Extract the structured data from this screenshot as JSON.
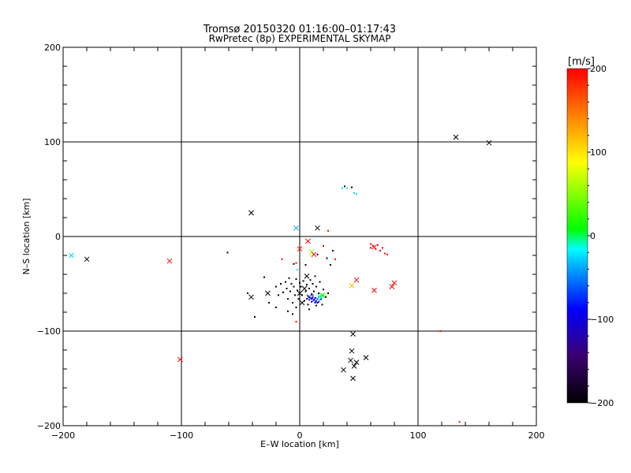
{
  "chart_data": {
    "type": "scatter",
    "title": "Tromsø 20150320 01:16:00–01:17:43",
    "subtitle": "RwPretec (8p) EXPERIMENTAL SKYMAP",
    "xlabel": "E–W location [km]",
    "ylabel": "N–S location [km]",
    "xlim": [
      -200,
      200
    ],
    "ylim": [
      -200,
      200
    ],
    "xticks": [
      -200,
      -100,
      0,
      100,
      200
    ],
    "yticks": [
      -200,
      -100,
      0,
      100,
      200
    ],
    "xtick_labels": [
      "−200",
      "−100",
      "0",
      "100",
      "200"
    ],
    "ytick_labels": [
      "−200",
      "−100",
      "0",
      "100",
      "200"
    ],
    "grid": true,
    "colorbar": {
      "label": "[m/s]",
      "range": [
        -200,
        200
      ],
      "ticks": [
        200,
        100,
        0,
        -100,
        -200
      ],
      "tick_labels": [
        "200",
        "100",
        "0",
        "−100",
        "−200"
      ],
      "placement": "right",
      "colors": [
        "#000000",
        "#3a0070",
        "#0000ff",
        "#00ffff",
        "#00ff00",
        "#ffff00",
        "#ff8000",
        "#ff0000"
      ]
    },
    "crosses": [
      {
        "x": 132,
        "y": 105,
        "v": -200
      },
      {
        "x": 160,
        "y": 99,
        "v": -200
      },
      {
        "x": -41,
        "y": 25,
        "v": -200
      },
      {
        "x": -3,
        "y": 9,
        "v": -60
      },
      {
        "x": 15,
        "y": 9,
        "v": -200
      },
      {
        "x": -193,
        "y": -20,
        "v": -40
      },
      {
        "x": -180,
        "y": -24,
        "v": -200
      },
      {
        "x": -110,
        "y": -26,
        "v": 200
      },
      {
        "x": 7,
        "y": -5,
        "v": 200
      },
      {
        "x": 0,
        "y": -13,
        "v": 190
      },
      {
        "x": 10,
        "y": -16,
        "v": 60
      },
      {
        "x": 12,
        "y": -19,
        "v": 200
      },
      {
        "x": 63,
        "y": -11,
        "v": 200
      },
      {
        "x": 48,
        "y": -46,
        "v": 200
      },
      {
        "x": 44,
        "y": -52,
        "v": 120
      },
      {
        "x": 80,
        "y": -49,
        "v": 200
      },
      {
        "x": 78,
        "y": -53,
        "v": 200
      },
      {
        "x": 63,
        "y": -57,
        "v": 200
      },
      {
        "x": -41,
        "y": -64,
        "v": -200
      },
      {
        "x": -27,
        "y": -60,
        "v": -200
      },
      {
        "x": 6,
        "y": -42,
        "v": -200
      },
      {
        "x": 4,
        "y": -55,
        "v": -200
      },
      {
        "x": 0,
        "y": -60,
        "v": -200
      },
      {
        "x": 8,
        "y": -64,
        "v": -130
      },
      {
        "x": 12,
        "y": -67,
        "v": -110
      },
      {
        "x": 17,
        "y": -63,
        "v": -20
      },
      {
        "x": 19,
        "y": -62,
        "v": 20
      },
      {
        "x": 2,
        "y": -70,
        "v": -200
      },
      {
        "x": 45,
        "y": -103,
        "v": -200
      },
      {
        "x": 44,
        "y": -121,
        "v": -200
      },
      {
        "x": 43,
        "y": -131,
        "v": -200
      },
      {
        "x": 56,
        "y": -128,
        "v": -200
      },
      {
        "x": 48,
        "y": -133,
        "v": -200
      },
      {
        "x": 46,
        "y": -137,
        "v": -200
      },
      {
        "x": 37,
        "y": -141,
        "v": -200
      },
      {
        "x": 45,
        "y": -150,
        "v": -200
      },
      {
        "x": -101,
        "y": -130,
        "v": 200
      }
    ],
    "dots": [
      {
        "x": 36,
        "y": 51,
        "v": -30
      },
      {
        "x": 38,
        "y": 53,
        "v": -200
      },
      {
        "x": 40,
        "y": 51,
        "v": -40
      },
      {
        "x": 44,
        "y": 52,
        "v": -200
      },
      {
        "x": 46,
        "y": 46,
        "v": -40
      },
      {
        "x": 48,
        "y": 45,
        "v": -30
      },
      {
        "x": 24,
        "y": 6,
        "v": 200
      },
      {
        "x": -61,
        "y": -17,
        "v": -200
      },
      {
        "x": -15,
        "y": -24,
        "v": 200
      },
      {
        "x": -3,
        "y": -28,
        "v": 200
      },
      {
        "x": -2,
        "y": -35,
        "v": -30
      },
      {
        "x": -5,
        "y": -29,
        "v": -200
      },
      {
        "x": 5,
        "y": -30,
        "v": -200
      },
      {
        "x": 9,
        "y": -20,
        "v": 80
      },
      {
        "x": 15,
        "y": -19,
        "v": -200
      },
      {
        "x": 20,
        "y": -10,
        "v": 200
      },
      {
        "x": 23,
        "y": -23,
        "v": -200
      },
      {
        "x": 26,
        "y": -30,
        "v": -200
      },
      {
        "x": 28,
        "y": -15,
        "v": -200
      },
      {
        "x": 30,
        "y": -24,
        "v": 200
      },
      {
        "x": 60,
        "y": -8,
        "v": 200
      },
      {
        "x": 62,
        "y": -10,
        "v": 200
      },
      {
        "x": 64,
        "y": -13,
        "v": 200
      },
      {
        "x": 66,
        "y": -9,
        "v": 200
      },
      {
        "x": 68,
        "y": -15,
        "v": 200
      },
      {
        "x": 70,
        "y": -12,
        "v": 200
      },
      {
        "x": 72,
        "y": -18,
        "v": 200
      },
      {
        "x": 74,
        "y": -19,
        "v": 200
      },
      {
        "x": 60,
        "y": -12,
        "v": 200
      },
      {
        "x": -44,
        "y": -60,
        "v": -200
      },
      {
        "x": -38,
        "y": -85,
        "v": -200
      },
      {
        "x": -30,
        "y": -43,
        "v": -200
      },
      {
        "x": -26,
        "y": -70,
        "v": -200
      },
      {
        "x": -20,
        "y": -53,
        "v": -200
      },
      {
        "x": -18,
        "y": -62,
        "v": -200
      },
      {
        "x": -16,
        "y": -50,
        "v": -200
      },
      {
        "x": -14,
        "y": -59,
        "v": -200
      },
      {
        "x": -12,
        "y": -48,
        "v": -200
      },
      {
        "x": -11,
        "y": -55,
        "v": -200
      },
      {
        "x": -10,
        "y": -66,
        "v": -200
      },
      {
        "x": -9,
        "y": -44,
        "v": -200
      },
      {
        "x": -8,
        "y": -58,
        "v": -200
      },
      {
        "x": -7,
        "y": -50,
        "v": -200
      },
      {
        "x": -6,
        "y": -70,
        "v": -200
      },
      {
        "x": -5,
        "y": -53,
        "v": -200
      },
      {
        "x": -4,
        "y": -62,
        "v": -200
      },
      {
        "x": -3,
        "y": -45,
        "v": -200
      },
      {
        "x": -2,
        "y": -57,
        "v": -200
      },
      {
        "x": -1,
        "y": -66,
        "v": -200
      },
      {
        "x": 0,
        "y": -49,
        "v": -200
      },
      {
        "x": 1,
        "y": -53,
        "v": -200
      },
      {
        "x": 2,
        "y": -62,
        "v": -200
      },
      {
        "x": 3,
        "y": -47,
        "v": -200
      },
      {
        "x": 4,
        "y": -68,
        "v": -200
      },
      {
        "x": 5,
        "y": -58,
        "v": -200
      },
      {
        "x": 6,
        "y": -51,
        "v": -200
      },
      {
        "x": 7,
        "y": -72,
        "v": -200
      },
      {
        "x": 8,
        "y": -55,
        "v": -200
      },
      {
        "x": 9,
        "y": -46,
        "v": -200
      },
      {
        "x": 10,
        "y": -61,
        "v": -200
      },
      {
        "x": 11,
        "y": -50,
        "v": -200
      },
      {
        "x": 12,
        "y": -58,
        "v": -200
      },
      {
        "x": 13,
        "y": -42,
        "v": -200
      },
      {
        "x": 14,
        "y": -53,
        "v": -200
      },
      {
        "x": 15,
        "y": -70,
        "v": -200
      },
      {
        "x": 16,
        "y": -60,
        "v": -200
      },
      {
        "x": 17,
        "y": -48,
        "v": -200
      },
      {
        "x": 18,
        "y": -66,
        "v": -200
      },
      {
        "x": 20,
        "y": -56,
        "v": -200
      },
      {
        "x": 22,
        "y": -64,
        "v": -200
      },
      {
        "x": 24,
        "y": -60,
        "v": -200
      },
      {
        "x": -20,
        "y": -75,
        "v": -200
      },
      {
        "x": -10,
        "y": -79,
        "v": -200
      },
      {
        "x": -3,
        "y": -75,
        "v": -200
      },
      {
        "x": 8,
        "y": -77,
        "v": -200
      },
      {
        "x": 14,
        "y": -73,
        "v": -200
      },
      {
        "x": 19,
        "y": -72,
        "v": -200
      },
      {
        "x": -6,
        "y": -82,
        "v": -200
      },
      {
        "x": -3,
        "y": -90,
        "v": 200
      },
      {
        "x": 7,
        "y": -63,
        "v": -140
      },
      {
        "x": 9,
        "y": -65,
        "v": -120
      },
      {
        "x": 10,
        "y": -66,
        "v": -110
      },
      {
        "x": 11,
        "y": -64,
        "v": -100
      },
      {
        "x": 12,
        "y": -67,
        "v": -120
      },
      {
        "x": 13,
        "y": -65,
        "v": -110
      },
      {
        "x": 14,
        "y": -68,
        "v": -90
      },
      {
        "x": 15,
        "y": -66,
        "v": -100
      },
      {
        "x": 16,
        "y": -64,
        "v": -80
      },
      {
        "x": 17,
        "y": -67,
        "v": -60
      },
      {
        "x": 18,
        "y": -65,
        "v": -30
      },
      {
        "x": 19,
        "y": -63,
        "v": 0
      },
      {
        "x": 20,
        "y": -62,
        "v": 20
      },
      {
        "x": 21,
        "y": -63,
        "v": 40
      },
      {
        "x": 10,
        "y": -69,
        "v": -120
      },
      {
        "x": 13,
        "y": -70,
        "v": -130
      },
      {
        "x": 16,
        "y": -69,
        "v": -110
      },
      {
        "x": 8,
        "y": -67,
        "v": -150
      },
      {
        "x": 6,
        "y": -66,
        "v": -170
      },
      {
        "x": 11,
        "y": -62,
        "v": -90
      },
      {
        "x": 119,
        "y": -100,
        "v": 200
      },
      {
        "x": 135,
        "y": -196,
        "v": 200
      }
    ]
  }
}
